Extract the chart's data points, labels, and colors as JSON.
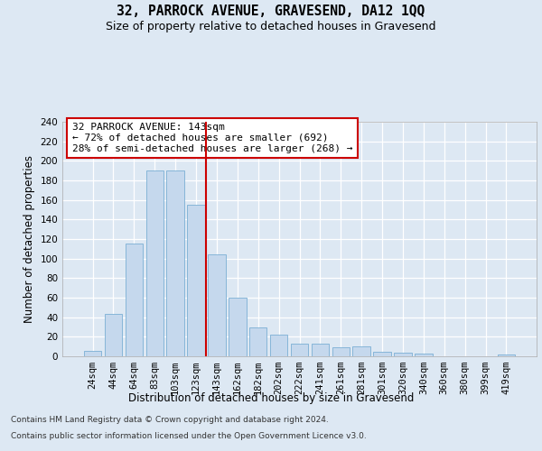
{
  "title": "32, PARROCK AVENUE, GRAVESEND, DA12 1QQ",
  "subtitle": "Size of property relative to detached houses in Gravesend",
  "xlabel": "Distribution of detached houses by size in Gravesend",
  "ylabel": "Number of detached properties",
  "categories": [
    "24sqm",
    "44sqm",
    "64sqm",
    "83sqm",
    "103sqm",
    "123sqm",
    "143sqm",
    "162sqm",
    "182sqm",
    "202sqm",
    "222sqm",
    "241sqm",
    "261sqm",
    "281sqm",
    "301sqm",
    "320sqm",
    "340sqm",
    "360sqm",
    "380sqm",
    "399sqm",
    "419sqm"
  ],
  "values": [
    6,
    43,
    115,
    190,
    190,
    155,
    104,
    60,
    30,
    22,
    13,
    13,
    9,
    10,
    5,
    4,
    3,
    0,
    0,
    0,
    2
  ],
  "bar_color": "#c5d8ed",
  "bar_edge_color": "#7aafd4",
  "vline_color": "#cc0000",
  "vline_x": 5.5,
  "annotation_line1": "32 PARROCK AVENUE: 143sqm",
  "annotation_line2": "← 72% of detached houses are smaller (692)",
  "annotation_line3": "28% of semi-detached houses are larger (268) →",
  "annotation_box_color": "#ffffff",
  "annotation_box_edge": "#cc0000",
  "ylim_max": 240,
  "yticks": [
    0,
    20,
    40,
    60,
    80,
    100,
    120,
    140,
    160,
    180,
    200,
    220,
    240
  ],
  "footer_line1": "Contains HM Land Registry data © Crown copyright and database right 2024.",
  "footer_line2": "Contains public sector information licensed under the Open Government Licence v3.0.",
  "bg_color": "#dde8f3",
  "grid_color": "#ffffff",
  "title_fontsize": 10.5,
  "subtitle_fontsize": 9,
  "annotation_fontsize": 8,
  "ylabel_fontsize": 8.5,
  "xlabel_fontsize": 8.5,
  "tick_fontsize": 7.5,
  "footer_fontsize": 6.5
}
